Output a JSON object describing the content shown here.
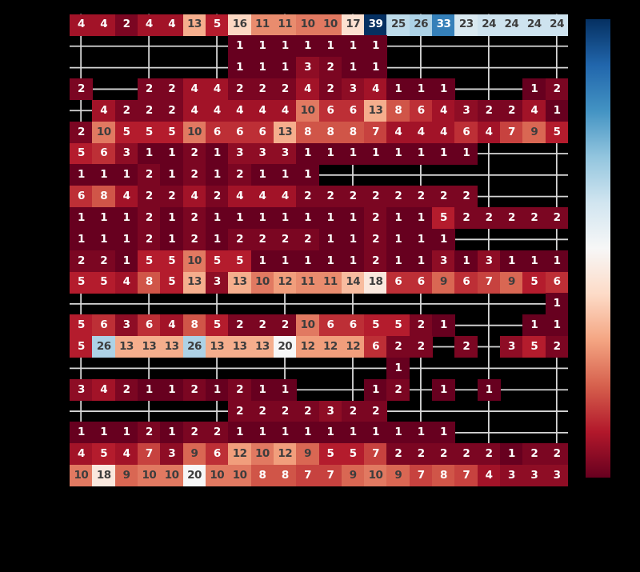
{
  "figure": {
    "background": "#000000"
  },
  "colors": {
    "grid_line": "#d6d6d6",
    "annot_dark": "#3d3d3d",
    "annot_light": "#ffffff",
    "cmap_min": "#67001f",
    "cmap_mid": "#f7f7f7",
    "cmap_max": "#053061"
  },
  "chart_data": {
    "type": "heatmap",
    "title": "",
    "xlabel": "",
    "ylabel": "",
    "rows": 22,
    "cols": 22,
    "vmin": 1,
    "vmax": 39,
    "colormap": "RdBu",
    "legend_position": "right-colorbar",
    "grid": true,
    "x_gridline_columns": [
      0,
      3,
      6,
      9,
      12,
      15,
      18,
      21
    ],
    "colormap_stops": [
      {
        "t": 0.0,
        "rgb": [
          103,
          0,
          31
        ]
      },
      {
        "t": 0.1,
        "rgb": [
          178,
          24,
          43
        ]
      },
      {
        "t": 0.2,
        "rgb": [
          214,
          96,
          77
        ]
      },
      {
        "t": 0.3,
        "rgb": [
          244,
          165,
          130
        ]
      },
      {
        "t": 0.4,
        "rgb": [
          253,
          219,
          199
        ]
      },
      {
        "t": 0.5,
        "rgb": [
          247,
          247,
          247
        ]
      },
      {
        "t": 0.6,
        "rgb": [
          209,
          229,
          240
        ]
      },
      {
        "t": 0.7,
        "rgb": [
          146,
          197,
          222
        ]
      },
      {
        "t": 0.8,
        "rgb": [
          67,
          147,
          195
        ]
      },
      {
        "t": 0.9,
        "rgb": [
          33,
          102,
          172
        ]
      },
      {
        "t": 1.0,
        "rgb": [
          5,
          48,
          97
        ]
      }
    ],
    "matrix": [
      [
        4,
        4,
        2,
        4,
        4,
        13,
        5,
        16,
        11,
        11,
        10,
        10,
        17,
        39,
        25,
        26,
        33,
        23,
        24,
        24,
        24,
        24
      ],
      [
        null,
        null,
        null,
        null,
        null,
        null,
        null,
        1,
        1,
        1,
        1,
        1,
        1,
        1,
        null,
        null,
        null,
        null,
        null,
        null,
        null,
        null
      ],
      [
        null,
        null,
        null,
        null,
        null,
        null,
        null,
        1,
        1,
        1,
        3,
        2,
        1,
        1,
        null,
        null,
        null,
        null,
        null,
        null,
        null,
        null
      ],
      [
        2,
        null,
        null,
        2,
        2,
        4,
        4,
        2,
        2,
        2,
        4,
        2,
        3,
        4,
        1,
        1,
        1,
        null,
        null,
        null,
        1,
        2
      ],
      [
        null,
        4,
        2,
        2,
        2,
        4,
        4,
        4,
        4,
        4,
        10,
        6,
        6,
        13,
        8,
        6,
        4,
        3,
        2,
        2,
        4,
        1
      ],
      [
        2,
        10,
        5,
        5,
        5,
        10,
        6,
        6,
        6,
        13,
        8,
        8,
        8,
        7,
        4,
        4,
        4,
        6,
        4,
        7,
        9,
        5
      ],
      [
        5,
        6,
        3,
        1,
        1,
        2,
        1,
        3,
        3,
        3,
        1,
        1,
        1,
        1,
        1,
        1,
        1,
        1,
        null,
        null,
        null,
        null
      ],
      [
        1,
        1,
        1,
        2,
        1,
        2,
        1,
        2,
        1,
        1,
        1,
        null,
        null,
        null,
        null,
        null,
        null,
        null,
        null,
        null,
        null,
        null
      ],
      [
        6,
        8,
        4,
        2,
        2,
        4,
        2,
        4,
        4,
        4,
        2,
        2,
        2,
        2,
        2,
        2,
        2,
        2,
        null,
        null,
        null,
        null
      ],
      [
        1,
        1,
        1,
        2,
        1,
        2,
        1,
        1,
        1,
        1,
        1,
        1,
        1,
        2,
        1,
        1,
        5,
        2,
        2,
        2,
        2,
        2
      ],
      [
        1,
        1,
        1,
        2,
        1,
        2,
        1,
        2,
        2,
        2,
        2,
        1,
        1,
        2,
        1,
        1,
        1,
        null,
        null,
        null,
        null,
        null
      ],
      [
        2,
        2,
        1,
        5,
        5,
        10,
        5,
        5,
        1,
        1,
        1,
        1,
        1,
        2,
        1,
        1,
        3,
        1,
        3,
        1,
        1,
        1
      ],
      [
        5,
        5,
        4,
        8,
        5,
        13,
        3,
        13,
        10,
        12,
        11,
        11,
        14,
        18,
        6,
        6,
        9,
        6,
        7,
        9,
        5,
        6
      ],
      [
        null,
        null,
        null,
        null,
        null,
        null,
        null,
        null,
        null,
        null,
        null,
        null,
        null,
        null,
        null,
        null,
        null,
        null,
        null,
        null,
        null,
        1
      ],
      [
        5,
        6,
        3,
        6,
        4,
        8,
        5,
        2,
        2,
        2,
        10,
        6,
        6,
        5,
        5,
        2,
        1,
        null,
        null,
        null,
        1,
        1
      ],
      [
        5,
        26,
        13,
        13,
        13,
        26,
        13,
        13,
        13,
        20,
        12,
        12,
        12,
        6,
        2,
        2,
        null,
        2,
        null,
        3,
        5,
        2
      ],
      [
        null,
        null,
        null,
        null,
        null,
        null,
        null,
        null,
        null,
        null,
        null,
        null,
        null,
        null,
        1,
        null,
        null,
        null,
        null,
        null,
        null,
        null
      ],
      [
        3,
        4,
        2,
        1,
        1,
        2,
        1,
        2,
        1,
        1,
        null,
        null,
        null,
        1,
        2,
        null,
        1,
        null,
        1,
        null,
        null,
        null
      ],
      [
        null,
        null,
        null,
        null,
        null,
        null,
        null,
        2,
        2,
        2,
        2,
        3,
        2,
        2,
        null,
        null,
        null,
        null,
        null,
        null,
        null,
        null
      ],
      [
        1,
        1,
        1,
        2,
        1,
        2,
        2,
        1,
        1,
        1,
        1,
        1,
        1,
        1,
        1,
        1,
        1,
        null,
        null,
        null,
        null,
        null
      ],
      [
        4,
        5,
        4,
        7,
        3,
        9,
        6,
        12,
        10,
        12,
        9,
        5,
        5,
        7,
        2,
        2,
        2,
        2,
        2,
        1,
        2,
        2
      ],
      [
        10,
        18,
        9,
        10,
        10,
        20,
        10,
        10,
        8,
        8,
        7,
        7,
        9,
        10,
        9,
        7,
        8,
        7,
        4,
        3,
        3,
        3
      ]
    ]
  }
}
